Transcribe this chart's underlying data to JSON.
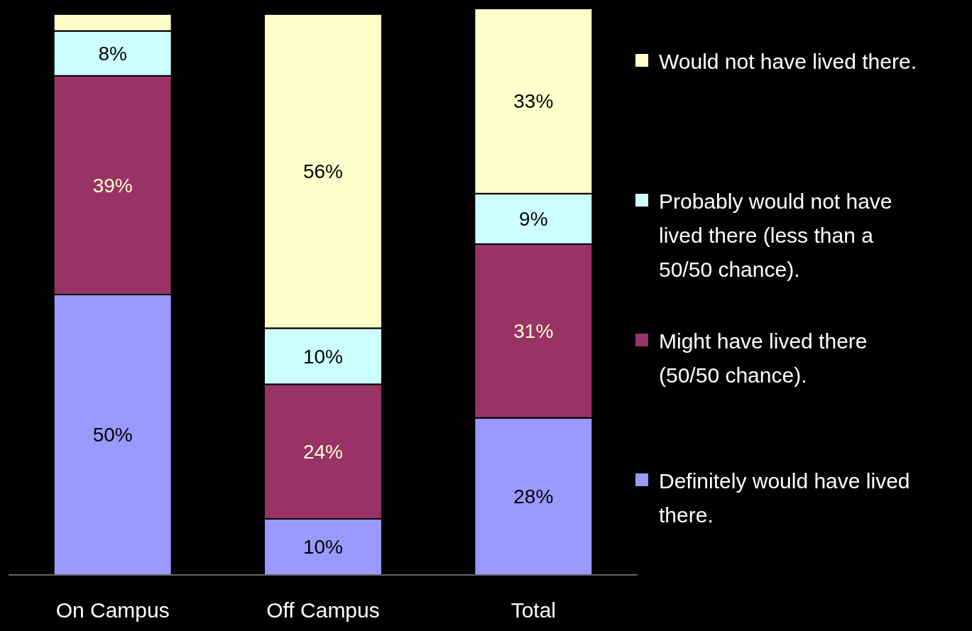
{
  "chart_data": {
    "type": "bar",
    "stacked": true,
    "categories": [
      "On Campus",
      "Off Campus",
      "Total"
    ],
    "ylim": [
      0,
      101
    ],
    "tick_labels": "x",
    "legend": "right",
    "series": [
      {
        "name": "Definitely would have lived there.",
        "color": "#9999ff",
        "values": [
          50,
          10,
          28
        ],
        "value_labels": [
          "50%",
          "10%",
          "28%"
        ]
      },
      {
        "name": "Might have lived there (50/50 chance).",
        "color": "#993366",
        "values": [
          39,
          24,
          31
        ],
        "value_labels": [
          "39%",
          "24%",
          "31%"
        ]
      },
      {
        "name": "Probably would not have lived there (less than a 50/50 chance).",
        "color": "#ccffff",
        "values": [
          8,
          10,
          9
        ],
        "value_labels": [
          "8%",
          "10%",
          "9%"
        ]
      },
      {
        "name": "Would not have lived there.",
        "color": "#ffffcc",
        "values": [
          3,
          56,
          33
        ],
        "value_labels": [
          null,
          "56%",
          "33%"
        ]
      }
    ]
  }
}
